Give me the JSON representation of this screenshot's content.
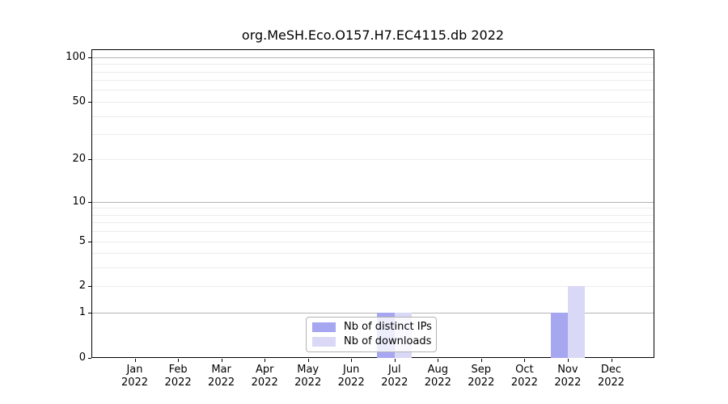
{
  "chart_data": {
    "type": "bar",
    "title": "org.MeSH.Eco.O157.H7.EC4115.db 2022",
    "year": "2022",
    "categories": [
      "Jan",
      "Feb",
      "Mar",
      "Apr",
      "May",
      "Jun",
      "Jul",
      "Aug",
      "Sep",
      "Oct",
      "Nov",
      "Dec"
    ],
    "series": [
      {
        "name": "Nb of distinct IPs",
        "color": "#a6a6f1",
        "values": [
          0,
          0,
          0,
          0,
          0,
          0,
          1,
          0,
          0,
          0,
          1,
          0
        ]
      },
      {
        "name": "Nb of downloads",
        "color": "#d9d9f7",
        "values": [
          0,
          0,
          0,
          0,
          0,
          0,
          1,
          0,
          0,
          0,
          2,
          0
        ]
      }
    ],
    "xlabel": "",
    "ylabel": "",
    "y_ticks": [
      0,
      1,
      2,
      5,
      10,
      20,
      50,
      100
    ],
    "y_major_gridlines": [
      1,
      10,
      100
    ],
    "y_minor_gridlines": [
      2,
      3,
      4,
      5,
      6,
      7,
      8,
      9,
      20,
      30,
      40,
      50,
      60,
      70,
      80,
      90
    ],
    "scale": "log1p",
    "ylim": [
      0,
      113
    ],
    "grid": true,
    "legend_position": "lower center inside plot"
  },
  "legend": {
    "items": [
      {
        "label": "Nb of distinct IPs",
        "color": "#a6a6f1"
      },
      {
        "label": "Nb of downloads",
        "color": "#d9d9f7"
      }
    ]
  },
  "colors": {
    "background": "#ffffff",
    "axis": "#000000",
    "major_grid": "#b5b5b5",
    "minor_grid": "#ececec",
    "legend_border": "#b4b4b4",
    "bar_distinct_ips": "#a6a6f1",
    "bar_downloads": "#d9d9f7"
  }
}
